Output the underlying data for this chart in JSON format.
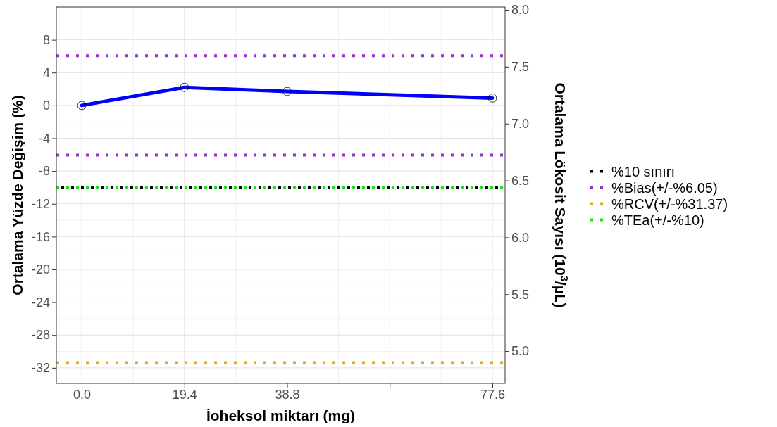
{
  "chart_data": {
    "type": "line",
    "xlabel": "İoheksol miktarı (mg)",
    "ylabel": "Ortalama Yüzde Değişim (%)",
    "y2label": "Ortalama Lökosit Sayısı (10$^{3}$/µL)",
    "x": [
      0,
      19.4,
      38.8,
      77.6
    ],
    "series": [
      {
        "color": "#0000ff",
        "values": [
          0,
          2.2,
          1.7,
          0.9
        ]
      }
    ],
    "xlim": [
      -4.8,
      80
    ],
    "xticks": [
      {
        "value": 0,
        "label": "0.0"
      },
      19.4,
      38.8,
      {
        "value": 58.2,
        "label": null
      },
      77.6
    ],
    "ylim": [
      -33.9,
      12
    ],
    "yticks": [
      -32,
      -28,
      -24,
      -20,
      -16,
      -12,
      -8,
      -4,
      0,
      4,
      8
    ],
    "y2lim": [
      4.716,
      8.025
    ],
    "y2ticks": [
      {
        "value": 5,
        "label": "5.0"
      },
      5.5,
      {
        "value": 6,
        "label": "6.0"
      },
      6.5,
      {
        "value": 7,
        "label": "7.0"
      },
      7.5,
      {
        "value": 8,
        "label": "8.0"
      }
    ],
    "ref_lines": [
      {
        "axis": "y",
        "value": -10,
        "label": "%TEa(+/-%10)",
        "color": "#22dd22",
        "line_style": "dotted"
      },
      {
        "axis": "y",
        "value": -10,
        "label": "%10 sınırı",
        "color": "#000000",
        "line_style": "dotted"
      },
      {
        "axis": "y",
        "value": 6.05,
        "label": "%Bias(+/-%6.05)",
        "color": "#9933cc",
        "line_style": "dotted"
      },
      {
        "axis": "y",
        "value": -6.05,
        "label": null,
        "color": "#9933cc",
        "line_style": "dotted"
      },
      {
        "axis": "y",
        "value": -31.37,
        "label": "%RCV(+/-%31.37)",
        "color": "#e6a817",
        "line_style": "dotted"
      }
    ],
    "grid": true,
    "legend": "right",
    "marker": "circle",
    "line_style": "solid"
  }
}
